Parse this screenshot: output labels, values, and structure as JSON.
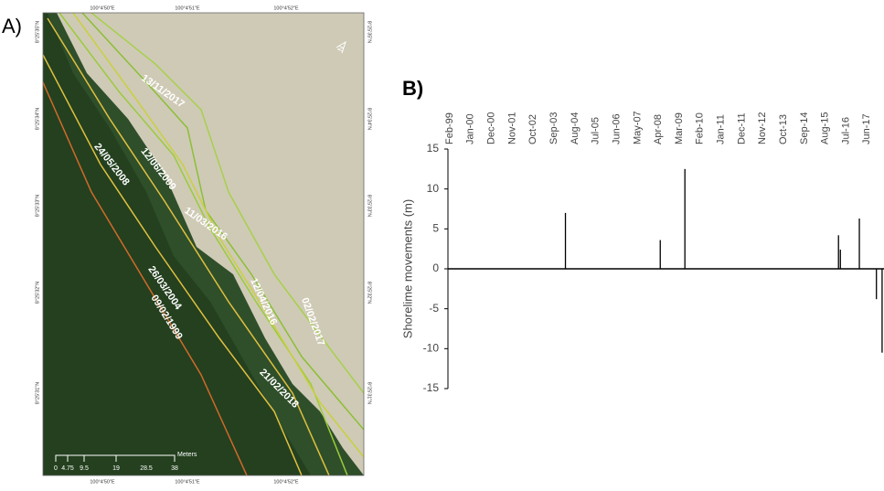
{
  "map": {
    "panel_label": "A)",
    "top_labels": [
      "100°4'50\"E",
      "100°4'51\"E",
      "100°4'52\"E"
    ],
    "bottom_labels": [
      "100°4'50\"E",
      "100°4'51\"E",
      "100°4'52\"E"
    ],
    "left_labels": [
      "8°25'35\"N",
      "8°25'34\"N",
      "8°25'33\"N",
      "8°25'32\"N",
      "8°25'31\"N"
    ],
    "right_labels": [
      "8°25'35\"N",
      "8°25'34\"N",
      "8°25'33\"N",
      "8°25'32\"N",
      "8°25'31\"N"
    ],
    "north": "N",
    "shoreline_labels": [
      "13/11/2017",
      "12/06/2009",
      "24/05/2008",
      "11/03/2016",
      "26/03/2004",
      "09/02/1999",
      "12/04/2016",
      "02/02/2017",
      "21/02/2018"
    ],
    "scale_labels": [
      "0",
      "4.75",
      "9.5",
      "19",
      "28.5",
      "38"
    ],
    "scale_unit": "Meters"
  },
  "chart_data": {
    "type": "bar",
    "panel_label": "B)",
    "y_label": "Shorelime movements (m)",
    "x": [
      "2004-03",
      "2008-05",
      "2009-06",
      "2016-03",
      "2016-04",
      "2017-02",
      "2017-11",
      "2018-02"
    ],
    "values": [
      7,
      3.6,
      12.5,
      4.2,
      2.4,
      6.3,
      -3.8,
      -10.5
    ],
    "color": "#000000",
    "xlim": [
      "1999-02",
      "2018-03"
    ],
    "xticks": [
      {
        "value": "1999-02",
        "label": "Feb-99"
      },
      {
        "value": "2000-01",
        "label": "Jan-00"
      },
      {
        "value": "2000-12",
        "label": "Dec-00"
      },
      {
        "value": "2001-11",
        "label": "Nov-01"
      },
      {
        "value": "2002-10",
        "label": "Oct-02"
      },
      {
        "value": "2003-09",
        "label": "Sep-03"
      },
      {
        "value": "2004-08",
        "label": "Aug-04"
      },
      {
        "value": "2005-07",
        "label": "Jul-05"
      },
      {
        "value": "2006-06",
        "label": "Jun-06"
      },
      {
        "value": "2007-05",
        "label": "May-07"
      },
      {
        "value": "2008-04",
        "label": "Apr-08"
      },
      {
        "value": "2009-03",
        "label": "Mar-09"
      },
      {
        "value": "2010-02",
        "label": "Feb-10"
      },
      {
        "value": "2011-01",
        "label": "Jan-11"
      },
      {
        "value": "2011-12",
        "label": "Dec-11"
      },
      {
        "value": "2012-11",
        "label": "Nov-12"
      },
      {
        "value": "2013-10",
        "label": "Oct-13"
      },
      {
        "value": "2014-09",
        "label": "Sep-14"
      },
      {
        "value": "2015-08",
        "label": "Aug-15"
      },
      {
        "value": "2016-07",
        "label": "Jul-16"
      },
      {
        "value": "2017-06",
        "label": "Jun-17"
      }
    ],
    "ylim": [
      -15,
      15
    ],
    "yticks": [
      15,
      10,
      5,
      0,
      -5,
      -10,
      -15
    ]
  }
}
